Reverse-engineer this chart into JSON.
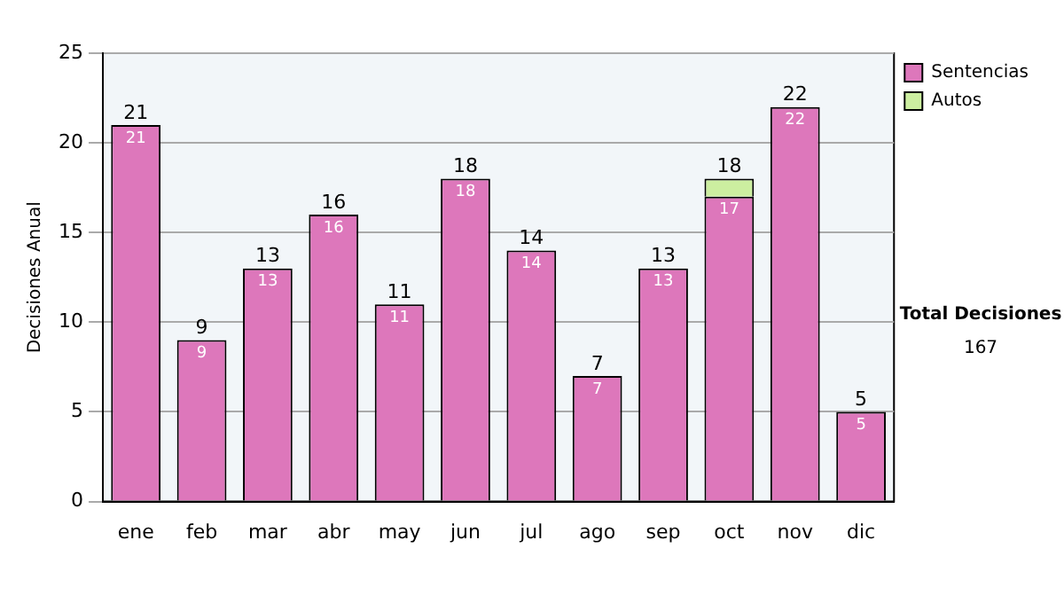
{
  "chart_data": {
    "type": "bar",
    "ylabel": "Decisiones Anual",
    "categories": [
      "ene",
      "feb",
      "mar",
      "abr",
      "may",
      "jun",
      "jul",
      "ago",
      "sep",
      "oct",
      "nov",
      "dic"
    ],
    "stacked": true,
    "series": [
      {
        "name": "Sentencias",
        "color": "#dd77bb",
        "values": [
          21,
          9,
          13,
          16,
          11,
          18,
          14,
          7,
          13,
          17,
          22,
          5
        ],
        "value_labels": [
          "21",
          "9",
          "13",
          "16",
          "11",
          "18",
          "14",
          "7",
          "13",
          "17",
          "22",
          "5"
        ]
      },
      {
        "name": "Autos",
        "color": "#cceea0",
        "values": [
          null,
          null,
          null,
          null,
          null,
          null,
          null,
          null,
          null,
          1,
          null,
          null
        ]
      }
    ],
    "totals": [
      "21",
      "9",
      "13",
      "16",
      "11",
      "18",
      "14",
      "7",
      "13",
      "18",
      "22",
      "5"
    ],
    "ylim": [
      0,
      25
    ],
    "yticks": [
      0,
      5,
      10,
      15,
      20,
      25
    ],
    "grid": "y",
    "legend": "right",
    "annotations": [
      "Total Decisiones",
      "167"
    ]
  }
}
